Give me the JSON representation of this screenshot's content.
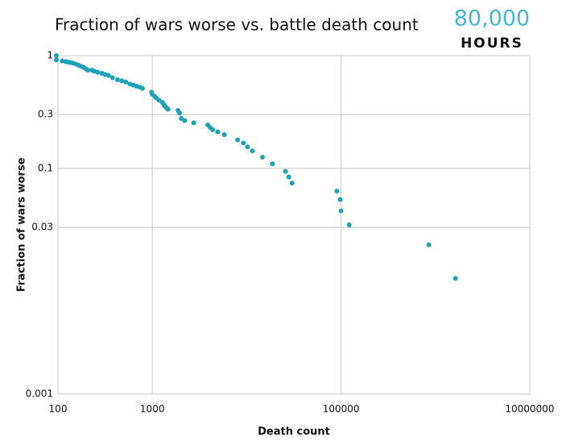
{
  "logo": {
    "top": "80,000",
    "bottom": "HOURS"
  },
  "chart_data": {
    "type": "scatter",
    "title": "Fraction of wars worse vs. battle death count",
    "x_label": "Death count",
    "y_label": "Fraction of wars worse",
    "log_x": true,
    "log_y": true,
    "grid": true,
    "color": "#1ba3b9",
    "xlim": [
      100,
      10000000
    ],
    "xticks": [
      100,
      1000,
      100000,
      10000000
    ],
    "ylim": [
      0.001,
      1
    ],
    "yticks": [
      1,
      0.3,
      0.1,
      0.03,
      0.001
    ],
    "x": [
      96,
      96,
      111,
      120,
      127,
      135,
      144,
      156,
      166,
      176,
      187,
      199,
      207,
      229,
      243,
      264,
      292,
      316,
      343,
      379,
      428,
      474,
      523,
      579,
      628,
      681,
      738,
      785,
      980,
      1000,
      1062,
      1106,
      1175,
      1274,
      1327,
      1355,
      1410,
      1468,
      1871,
      1946,
      2027,
      2197,
      2747,
      3870,
      4111,
      4368,
      4932,
      5794,
      8011,
      9230,
      10200,
      11500,
      14700,
      18700,
      25800,
      28000,
      30300,
      90400,
      98000,
      100000,
      122000,
      851000,
      1630000
    ],
    "values": [
      1,
      0.916,
      0.897,
      0.886,
      0.877,
      0.867,
      0.858,
      0.839,
      0.821,
      0.803,
      0.786,
      0.76,
      0.743,
      0.743,
      0.727,
      0.712,
      0.696,
      0.681,
      0.667,
      0.638,
      0.61,
      0.598,
      0.584,
      0.559,
      0.547,
      0.535,
      0.524,
      0.512,
      0.474,
      0.454,
      0.434,
      0.42,
      0.402,
      0.385,
      0.369,
      0.357,
      0.345,
      0.334,
      0.327,
      0.309,
      0.277,
      0.265,
      0.254,
      0.243,
      0.23,
      0.22,
      0.211,
      0.199,
      0.179,
      0.168,
      0.155,
      0.143,
      0.126,
      0.11,
      0.094,
      0.084,
      0.074,
      0.063,
      0.053,
      0.042,
      0.0316,
      0.021,
      0.0106
    ]
  }
}
